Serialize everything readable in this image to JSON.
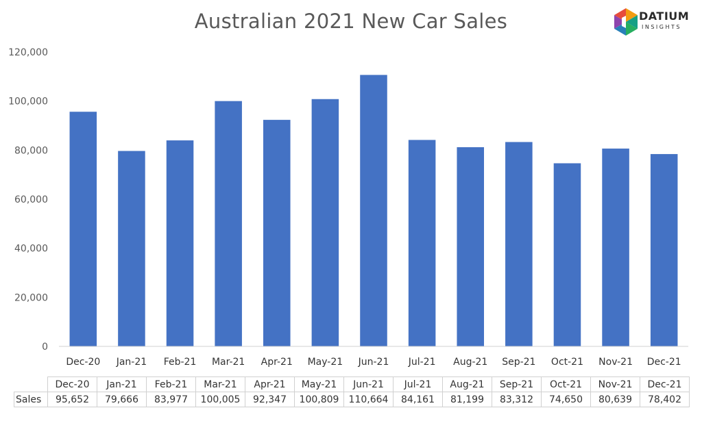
{
  "logo": {
    "name": "DATIUM",
    "tagline": "INSIGHTS"
  },
  "chart_data": {
    "type": "bar",
    "title": "Australian 2021 New Car Sales",
    "xlabel": "",
    "ylabel": "",
    "categories": [
      "Dec-20",
      "Jan-21",
      "Feb-21",
      "Mar-21",
      "Apr-21",
      "May-21",
      "Jun-21",
      "Jul-21",
      "Aug-21",
      "Sep-21",
      "Oct-21",
      "Nov-21",
      "Dec-21"
    ],
    "series": [
      {
        "name": "Sales",
        "values": [
          95652,
          79666,
          83977,
          100005,
          92347,
          100809,
          110664,
          84161,
          81199,
          83312,
          74650,
          80639,
          78402
        ]
      }
    ],
    "value_labels": [
      "95,652",
      "79,666",
      "83,977",
      "100,005",
      "92,347",
      "100,809",
      "110,664",
      "84,161",
      "81,199",
      "83,312",
      "74,650",
      "80,639",
      "78,402"
    ],
    "ylim": [
      0,
      120000
    ],
    "yticks": [
      0,
      20000,
      40000,
      60000,
      80000,
      100000,
      120000
    ],
    "ytick_labels": [
      "0",
      "20,000",
      "40,000",
      "60,000",
      "80,000",
      "100,000",
      "120,000"
    ],
    "grid": false,
    "bar_color": "#4472C4",
    "data_table": true
  }
}
